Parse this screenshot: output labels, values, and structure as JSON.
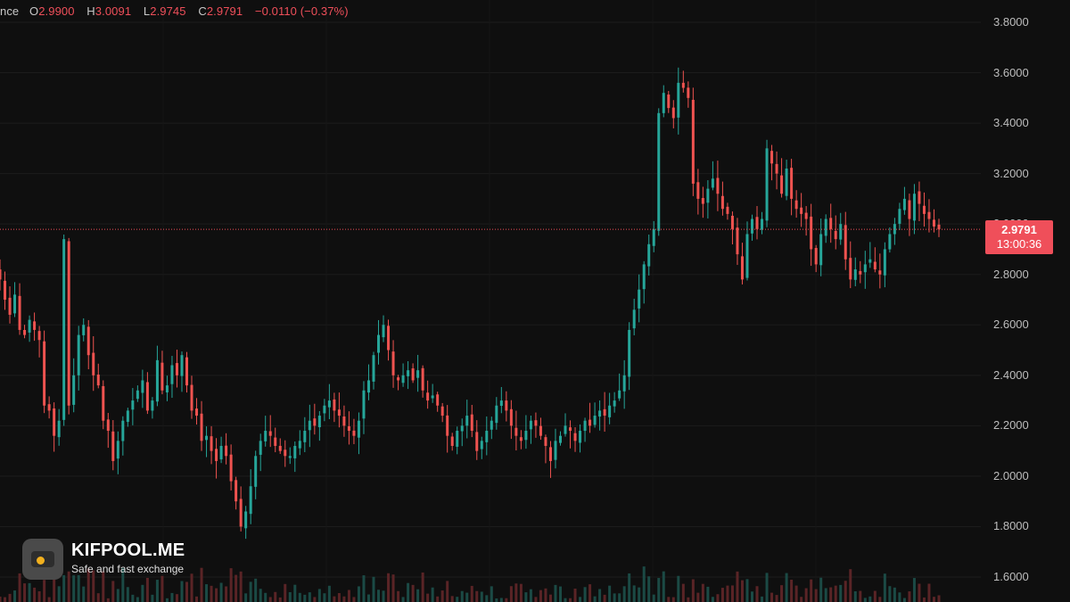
{
  "legend": {
    "symbol_fragment": "nce",
    "open_key": "O",
    "open": "2.9900",
    "high_key": "H",
    "high": "3.0091",
    "low_key": "L",
    "low": "2.9745",
    "close_key": "C",
    "close": "2.9791",
    "change": "−0.0110 (−0.37%)"
  },
  "price_axis": {
    "labels": [
      "3.8000",
      "3.6000",
      "3.4000",
      "3.2000",
      "3.0000",
      "2.8000",
      "2.6000",
      "2.4000",
      "2.2000",
      "2.0000",
      "1.8000",
      "1.6000"
    ]
  },
  "last_price": {
    "price": "2.9791",
    "countdown": "13:00:36"
  },
  "watermark": {
    "title": "KIFPOOL.ME",
    "subtitle": "Safe and fast exchange"
  },
  "colors": {
    "background": "#0f0f0f",
    "up": "#26a69a",
    "down": "#ef5350",
    "grid": "#1c1c1c",
    "axis_text": "#bdbdbd",
    "badge": "#ef4f5a"
  },
  "chart_data": {
    "type": "candlestick",
    "y_range": [
      1.55,
      3.85
    ],
    "y_ticks": [
      3.8,
      3.6,
      3.4,
      3.2,
      3.0,
      2.8,
      2.6,
      2.4,
      2.2,
      2.0,
      1.8,
      1.6
    ],
    "last_price": 2.9791,
    "closes": [
      2.78,
      2.7,
      2.64,
      2.72,
      2.58,
      2.56,
      2.62,
      2.58,
      2.54,
      2.28,
      2.26,
      2.16,
      2.22,
      2.94,
      2.28,
      2.4,
      2.56,
      2.6,
      2.48,
      2.4,
      2.36,
      2.22,
      2.18,
      2.06,
      2.14,
      2.22,
      2.26,
      2.3,
      2.34,
      2.38,
      2.26,
      2.3,
      2.46,
      2.34,
      2.36,
      2.44,
      2.4,
      2.48,
      2.36,
      2.26,
      2.24,
      2.14,
      2.16,
      2.1,
      2.06,
      2.12,
      2.08,
      1.98,
      1.9,
      1.8,
      1.86,
      1.96,
      2.08,
      2.14,
      2.18,
      2.16,
      2.12,
      2.1,
      2.08,
      2.08,
      2.12,
      2.14,
      2.18,
      2.22,
      2.2,
      2.24,
      2.28,
      2.3,
      2.26,
      2.24,
      2.2,
      2.18,
      2.16,
      2.22,
      2.34,
      2.38,
      2.48,
      2.56,
      2.6,
      2.5,
      2.4,
      2.38,
      2.4,
      2.42,
      2.38,
      2.42,
      2.34,
      2.3,
      2.32,
      2.28,
      2.24,
      2.16,
      2.12,
      2.18,
      2.2,
      2.24,
      2.18,
      2.1,
      2.14,
      2.18,
      2.22,
      2.28,
      2.3,
      2.26,
      2.2,
      2.16,
      2.14,
      2.18,
      2.22,
      2.2,
      2.16,
      2.12,
      2.06,
      2.14,
      2.16,
      2.2,
      2.18,
      2.14,
      2.18,
      2.22,
      2.2,
      2.24,
      2.26,
      2.24,
      2.28,
      2.3,
      2.34,
      2.4,
      2.58,
      2.66,
      2.74,
      2.84,
      2.92,
      2.98,
      3.44,
      3.52,
      3.46,
      3.42,
      3.56,
      3.54,
      3.5,
      3.16,
      3.1,
      3.08,
      3.14,
      3.18,
      3.12,
      3.06,
      3.04,
      2.98,
      2.88,
      2.78,
      2.96,
      3.02,
      2.98,
      3.02,
      3.3,
      3.24,
      3.2,
      3.12,
      3.22,
      3.1,
      3.06,
      3.04,
      3.02,
      2.9,
      2.84,
      2.96,
      3.02,
      2.98,
      2.94,
      3.0,
      2.86,
      2.78,
      2.82,
      2.8,
      2.84,
      2.86,
      2.82,
      2.8,
      2.9,
      2.96,
      3.0,
      3.06,
      3.1,
      3.02,
      3.12,
      3.08,
      3.04,
      3.02,
      2.99,
      2.9791
    ],
    "volume_note": "volume histogram along bottom"
  }
}
